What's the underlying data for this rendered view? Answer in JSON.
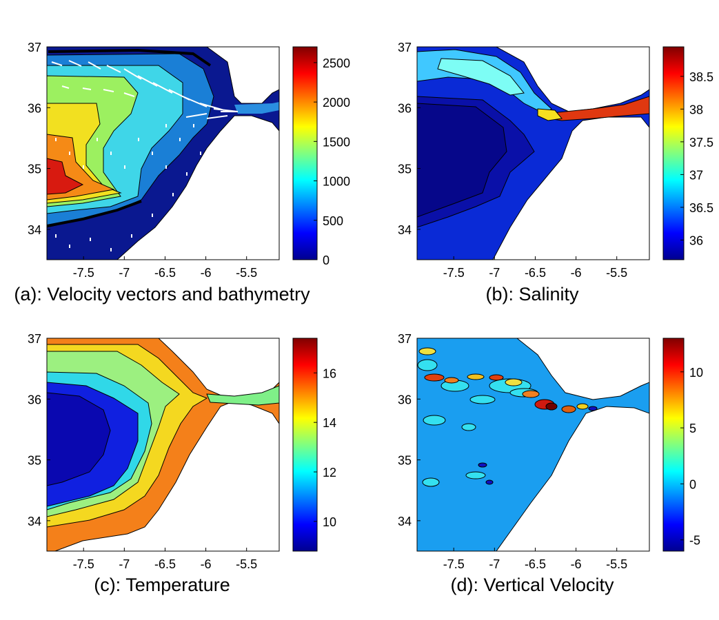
{
  "figure_caption": "",
  "chart_data": [
    {
      "type": "heatmap",
      "panel": "a",
      "caption": "(a): Velocity vectors and bathymetry",
      "overlay": "white velocity vector arrows",
      "x_ticks": [
        "-7.5",
        "-7",
        "-6.5",
        "-6",
        "-5.5"
      ],
      "y_ticks": [
        "37",
        "36",
        "35",
        "34"
      ],
      "xlim": [
        -7.95,
        -5.1
      ],
      "ylim": [
        33.5,
        37
      ],
      "colorbar": {
        "ticks": [
          "2500",
          "2000",
          "1500",
          "1000",
          "500",
          "0"
        ],
        "range": [
          0,
          2700
        ]
      },
      "colormap": "jet"
    },
    {
      "type": "heatmap",
      "panel": "b",
      "caption": "(b): Salinity",
      "x_ticks": [
        "-7.5",
        "-7",
        "-6.5",
        "-6",
        "-5.5"
      ],
      "y_ticks": [
        "37",
        "36",
        "35",
        "34"
      ],
      "xlim": [
        -7.95,
        -5.1
      ],
      "ylim": [
        33.5,
        37
      ],
      "colorbar": {
        "ticks": [
          "38.5",
          "38",
          "37.5",
          "37",
          "36.5",
          "36"
        ],
        "range": [
          35.7,
          38.95
        ]
      },
      "colormap": "jet"
    },
    {
      "type": "heatmap",
      "panel": "c",
      "caption": "(c): Temperature",
      "x_ticks": [
        "-7.5",
        "-7",
        "-6.5",
        "-6",
        "-5.5"
      ],
      "y_ticks": [
        "37",
        "36",
        "35",
        "34"
      ],
      "xlim": [
        -7.95,
        -5.1
      ],
      "ylim": [
        33.5,
        37
      ],
      "colorbar": {
        "ticks": [
          "16",
          "14",
          "12",
          "10"
        ],
        "range": [
          8.8,
          17.4
        ]
      },
      "colormap": "jet"
    },
    {
      "type": "heatmap",
      "panel": "d",
      "caption": "(d): Vertical Velocity",
      "x_ticks": [
        "-7.5",
        "-7",
        "-6.5",
        "-6",
        "-5.5"
      ],
      "y_ticks": [
        "37",
        "36",
        "35",
        "34"
      ],
      "xlim": [
        -7.95,
        -5.1
      ],
      "ylim": [
        33.5,
        37
      ],
      "colorbar": {
        "ticks": [
          "10",
          "5",
          "0",
          "-5"
        ],
        "range": [
          -6,
          13
        ]
      },
      "colormap": "jet"
    }
  ]
}
